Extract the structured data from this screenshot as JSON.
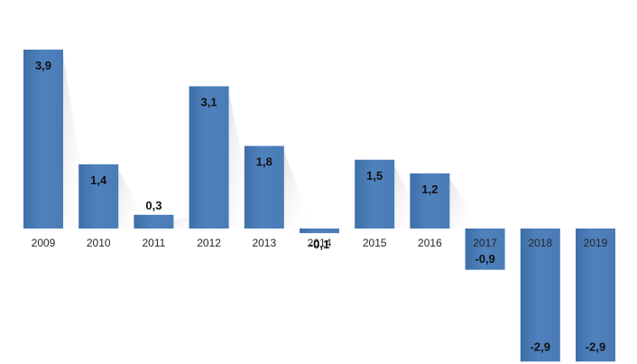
{
  "chart_data": {
    "type": "bar",
    "categories": [
      "2009",
      "2010",
      "2011",
      "2012",
      "2013",
      "2014",
      "2015",
      "2016",
      "2017",
      "2018",
      "2019"
    ],
    "values": [
      3.9,
      1.4,
      0.3,
      3.1,
      1.8,
      -0.1,
      1.5,
      1.2,
      -0.9,
      -2.9,
      -2.9
    ],
    "data_labels": [
      "3,9",
      "1,4",
      "0,3",
      "3,1",
      "1,8",
      "-0,1",
      "1,5",
      "1,2",
      "-0,9",
      "-2,9",
      "-2,9"
    ],
    "title": "",
    "xlabel": "",
    "ylabel": "",
    "ylim": [
      -2.9,
      3.9
    ],
    "grid": false,
    "legend": "none",
    "colors": {
      "bar": "#4F81BD",
      "bar_dark": "#3F6FA8",
      "shadow": "#d9d9d9"
    }
  }
}
